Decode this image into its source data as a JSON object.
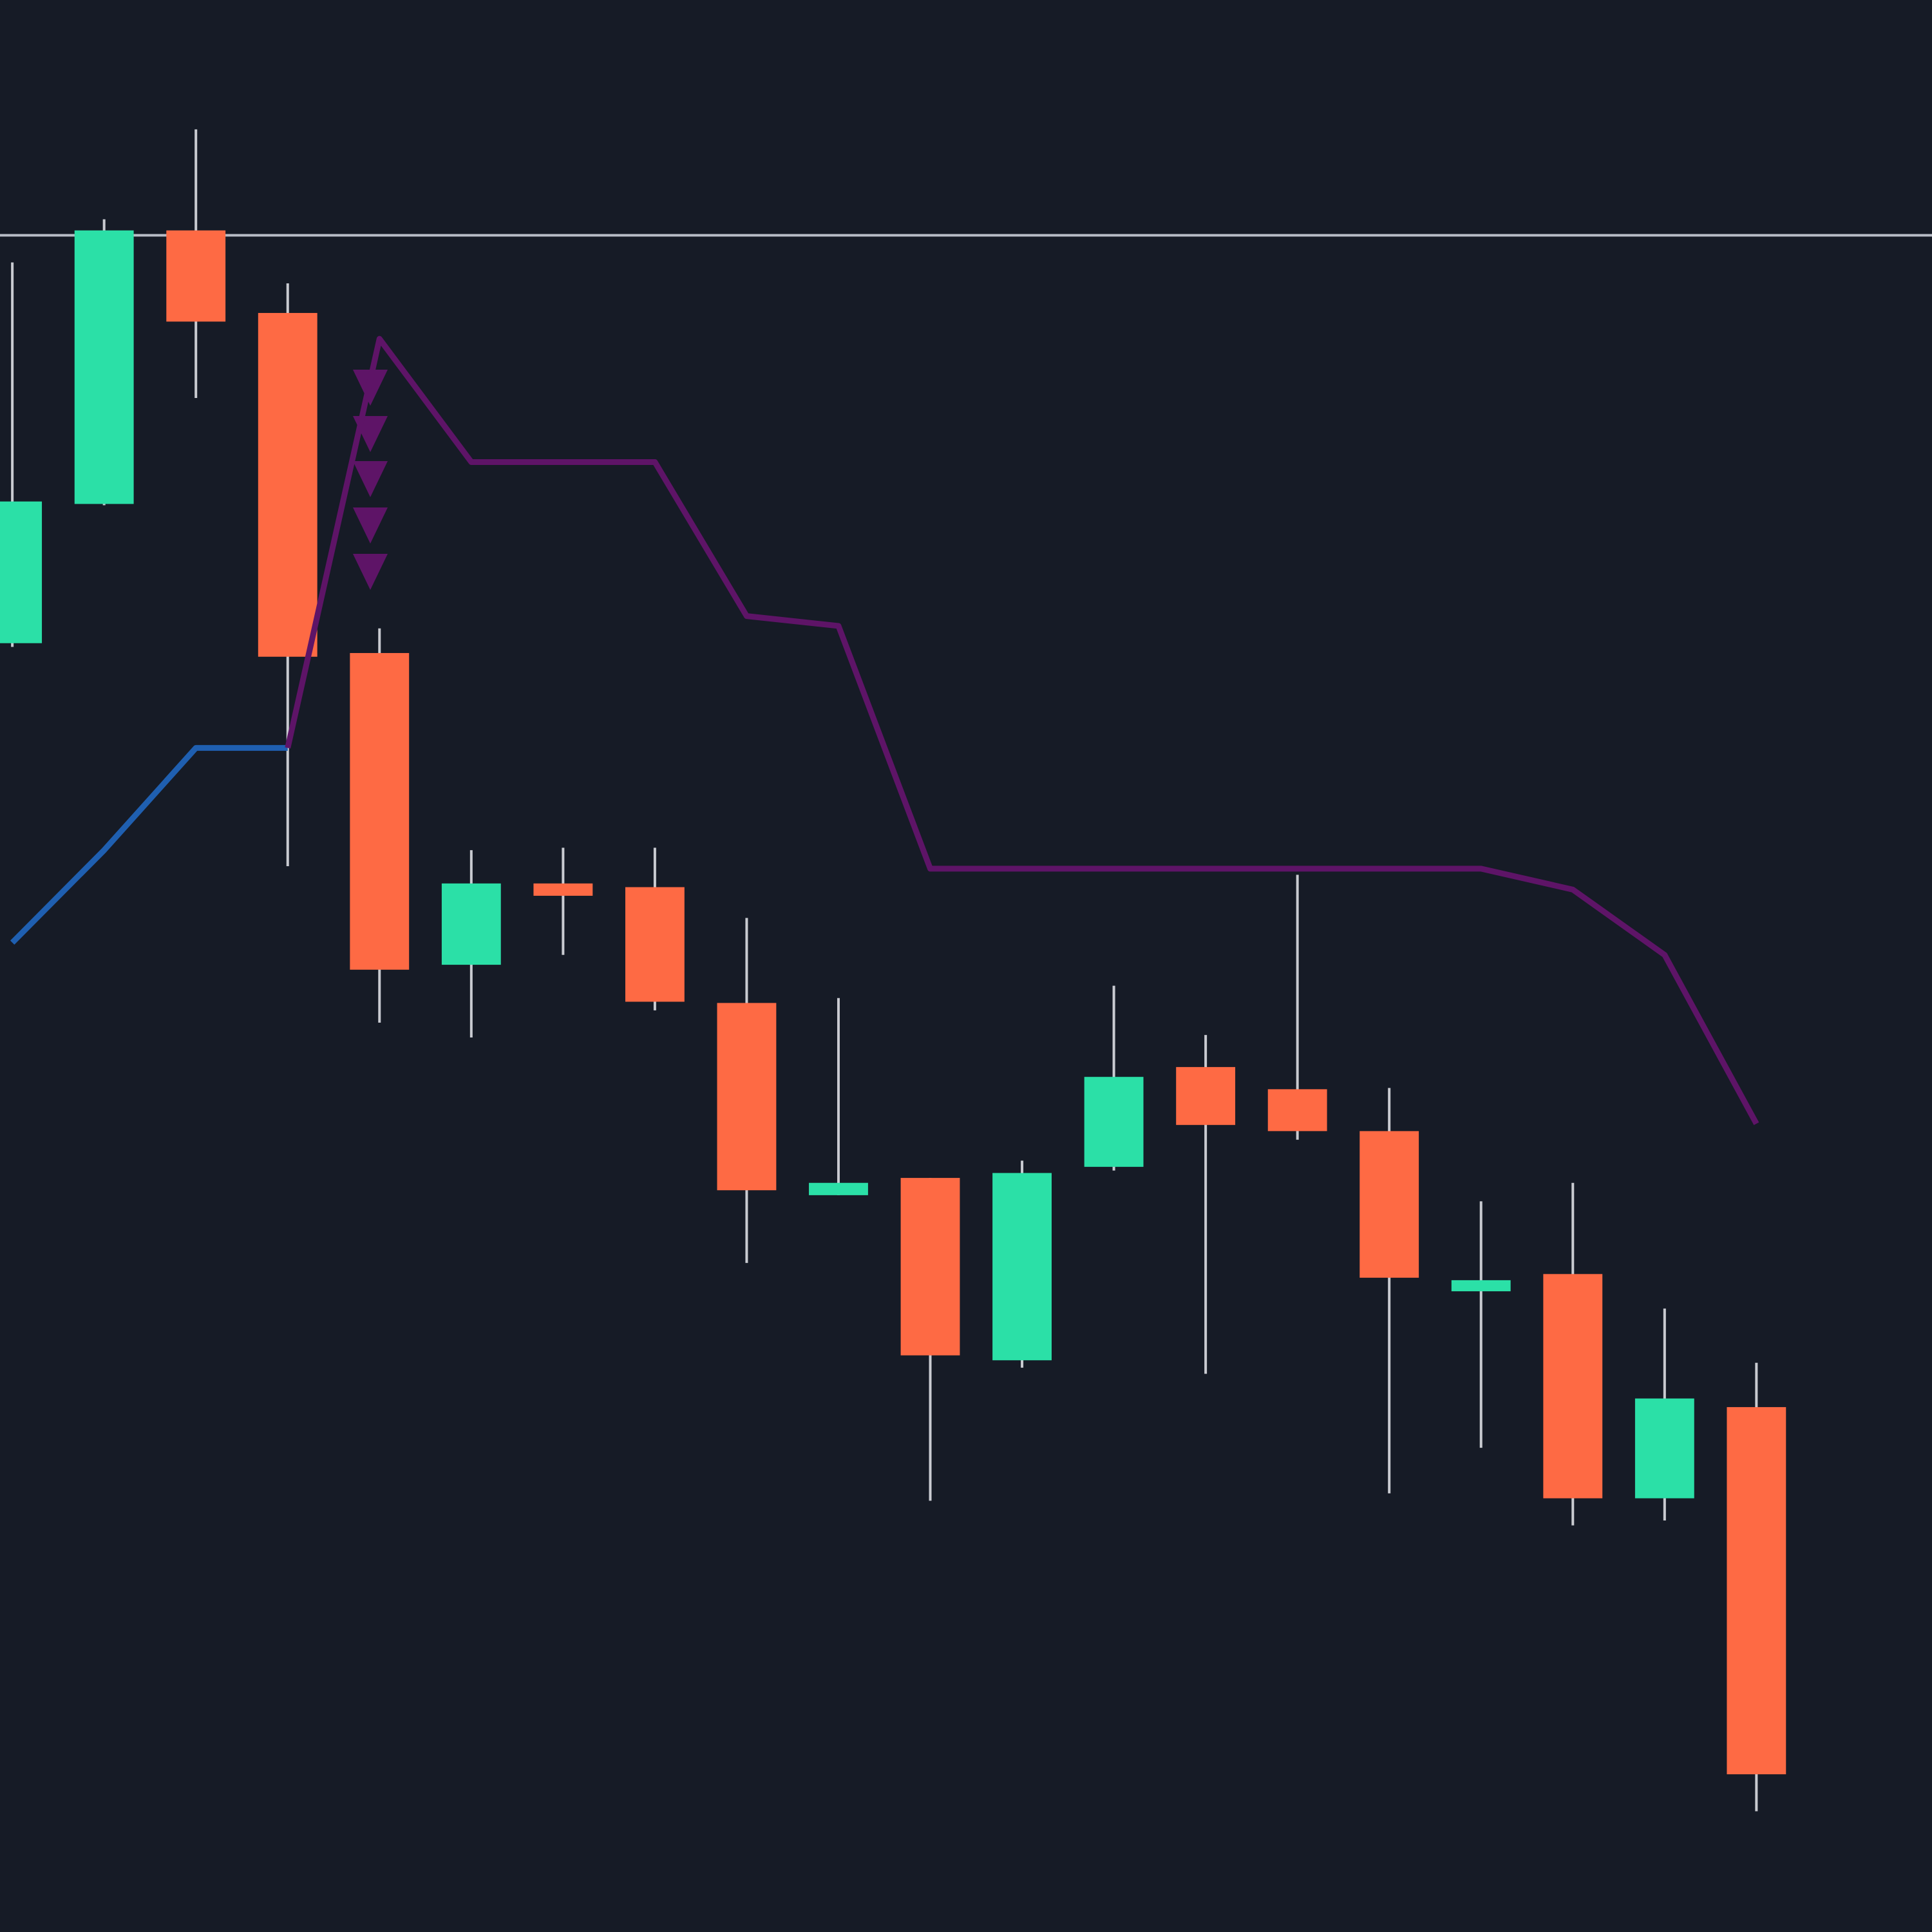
{
  "chart_data": {
    "type": "candlestick",
    "categories": [
      null,
      null,
      null,
      null,
      null,
      null,
      null,
      null,
      null,
      null,
      null,
      null,
      null,
      null,
      null,
      null,
      null,
      null,
      null,
      null
    ],
    "open": [
      1046,
      1159,
      1381,
      1314,
      1038,
      785,
      851,
      848,
      754,
      598,
      612,
      464,
      621,
      702,
      684,
      650,
      520,
      534,
      352,
      426
    ],
    "high": [
      1355,
      1390,
      1463,
      1338,
      1058,
      878,
      880,
      880,
      823,
      758,
      612,
      626,
      768,
      728,
      858,
      685,
      593,
      608,
      506,
      462
    ],
    "low": [
      1043,
      1158,
      1245,
      865,
      738,
      726,
      793,
      748,
      543,
      598,
      350,
      458,
      618,
      453,
      643,
      356,
      393,
      330,
      334,
      98
    ],
    "close": [
      1161,
      1381,
      1307,
      1035,
      781,
      851,
      841,
      755,
      602,
      608,
      468,
      616,
      694,
      655,
      650,
      531,
      529,
      352,
      433,
      128
    ],
    "up_color": "#2be0a7",
    "down_color": "#fe6a44",
    "wick_color": "#c9cbd1",
    "lines": [
      {
        "color": "#1f5fb0",
        "values": [
          803,
          878,
          961,
          961,
          null,
          null,
          null,
          null,
          null,
          null,
          null,
          null,
          null,
          null,
          null,
          null,
          null,
          null,
          null,
          null
        ]
      },
      {
        "color": "#5e1467",
        "values": [
          null,
          null,
          null,
          961,
          1293,
          1193,
          1193,
          1193,
          1068,
          1060,
          863,
          863,
          863,
          863,
          863,
          863,
          863,
          846,
          793,
          656
        ]
      }
    ],
    "price_line": {
      "value": 1377,
      "color": "#b8bcc6"
    },
    "ylim": [
      0,
      1568
    ]
  }
}
